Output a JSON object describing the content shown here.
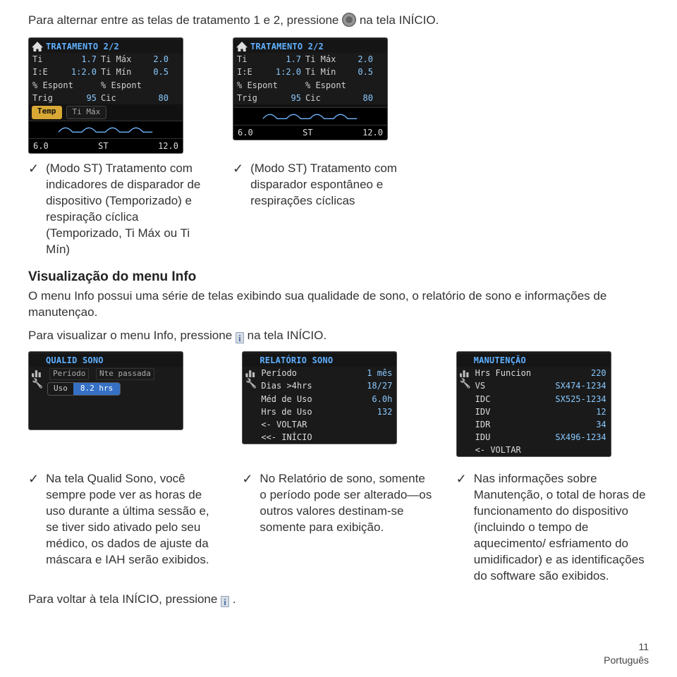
{
  "intro": {
    "pre": "Para alternar entre as telas de tratamento 1 e 2, pressione ",
    "post": " na tela INÍCIO."
  },
  "treat_screens": {
    "left": {
      "title": "TRATAMENTO 2/2",
      "rows": [
        [
          "Ti",
          "1.7",
          "Ti Máx",
          "2.0"
        ],
        [
          "I:E",
          "1:2.0",
          "Ti Mín",
          "0.5"
        ],
        [
          "% Espont",
          "",
          "% Espont",
          ""
        ],
        [
          "Trig",
          "95",
          "Cic",
          "80"
        ]
      ],
      "hl": [
        "Temp",
        "Ti Máx"
      ],
      "footer": [
        "6.0",
        "ST",
        "12.0"
      ],
      "wave_color": "#6fb7ff"
    },
    "right": {
      "title": "TRATAMENTO 2/2",
      "rows": [
        [
          "Ti",
          "1.7",
          "Ti Máx",
          "2.0"
        ],
        [
          "I:E",
          "1:2.0",
          "Ti Mín",
          "0.5"
        ],
        [
          "% Espont",
          "",
          "% Espont",
          ""
        ],
        [
          "Trig",
          "95",
          "Cic",
          "80"
        ]
      ],
      "hl": [],
      "footer": [
        "6.0",
        "ST",
        "12.0"
      ],
      "wave_color": "#6fb7ff"
    }
  },
  "treat_captions": {
    "left": "(Modo ST) Tratamento com indicadores de disparador de dispositivo (Temporizado) e respiração cíclica (Temporizado, Ti Máx ou Ti Mín)",
    "right": "(Modo ST) Tratamento com disparador espontâneo e respirações cíclicas"
  },
  "info_section": {
    "heading": "Visualização do menu Info",
    "para": "O menu Info possui uma série de telas exibindo sua qualidade de sono, o relatório de sono e informações de manutençao.",
    "view_pre": "Para visualizar o menu Info, pressione ",
    "view_post": " na tela INÍCIO."
  },
  "info_screens": {
    "qualid": {
      "title": "QUALID SONO",
      "tabs": [
        "Período",
        "Nte passada"
      ],
      "uso_label": "Uso",
      "uso_value": "8.2 hrs"
    },
    "relat": {
      "title": "RELATÓRIO SONO",
      "rows": [
        [
          "Período",
          "1 mês"
        ],
        [
          "Dias >4hrs",
          "18/27"
        ],
        [
          "Méd de Uso",
          "6.0h"
        ],
        [
          "Hrs de Uso",
          "132"
        ],
        [
          "<- VOLTAR",
          ""
        ],
        [
          "<<- INÍCIO",
          ""
        ]
      ]
    },
    "manut": {
      "title": "MANUTENÇÃO",
      "rows": [
        [
          "Hrs Funcion",
          "220"
        ],
        [
          "VS",
          "SX474-1234"
        ],
        [
          "IDC",
          "SX525-1234"
        ],
        [
          "IDV",
          "12"
        ],
        [
          "IDR",
          "34"
        ],
        [
          "IDU",
          "SX496-1234"
        ],
        [
          "<- VOLTAR",
          ""
        ]
      ]
    }
  },
  "info_captions": {
    "qualid": "Na tela Qualid Sono, você sempre pode ver as horas de uso durante a última sessão e, se tiver sido ativado pelo seu médico, os dados de ajuste da máscara e IAH serão exibidos.",
    "relat": "No Relatório de sono, somente o período pode ser alterado—os outros valores destinam-se somente para exibição.",
    "manut": "Nas informações sobre Manutenção, o total de horas de funcionamento do dispositivo (incluindo o tempo de aquecimento/ esfriamento do umidificador) e as identificações do software são exibidos."
  },
  "back_line": {
    "pre": "Para voltar à tela INÍCIO, pressione ",
    "post": "."
  },
  "footer": {
    "page": "11",
    "lang": "Português"
  },
  "colors": {
    "accent_blue": "#5fb0ff",
    "value_blue": "#88c8ff",
    "pill_amber": "#d8a835",
    "panel_bg": "#1a1a1a",
    "body_text": "#333333"
  }
}
